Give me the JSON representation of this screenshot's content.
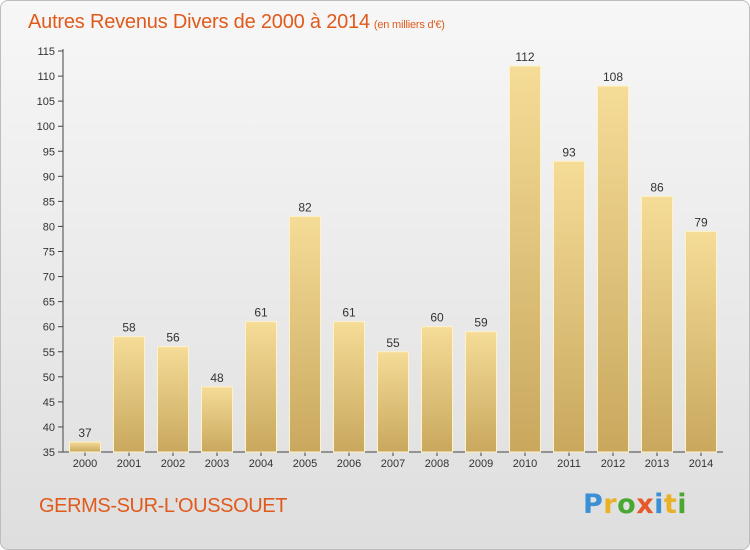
{
  "title": "Autres Revenus Divers de 2000 à 2014",
  "title_unit": "(en milliers d'€)",
  "commune": "GERMS-SUR-L'OUSSOUET",
  "logo": {
    "letters": [
      "P",
      "r",
      "o",
      "x",
      "i",
      "t",
      "i"
    ],
    "colors": [
      "#3a8fd6",
      "#e8b126",
      "#4aa832",
      "#e8572a",
      "#3a8fd6",
      "#e8b126",
      "#4aa832"
    ]
  },
  "colors": {
    "title": "#e05a1c",
    "bar_light": "#f5dc97",
    "bar_dark": "#c9a85e"
  },
  "chart_data": {
    "type": "bar",
    "categories": [
      "2000",
      "2001",
      "2002",
      "2003",
      "2004",
      "2005",
      "2006",
      "2007",
      "2008",
      "2009",
      "2010",
      "2011",
      "2012",
      "2013",
      "2014"
    ],
    "values": [
      37,
      58,
      56,
      48,
      61,
      82,
      61,
      55,
      60,
      59,
      112,
      93,
      108,
      86,
      79
    ],
    "ylim": [
      35,
      115
    ],
    "yticks": [
      35,
      40,
      45,
      50,
      55,
      60,
      65,
      70,
      75,
      80,
      85,
      90,
      95,
      100,
      105,
      110,
      115
    ],
    "grid": false,
    "xlabel": "",
    "ylabel": ""
  }
}
